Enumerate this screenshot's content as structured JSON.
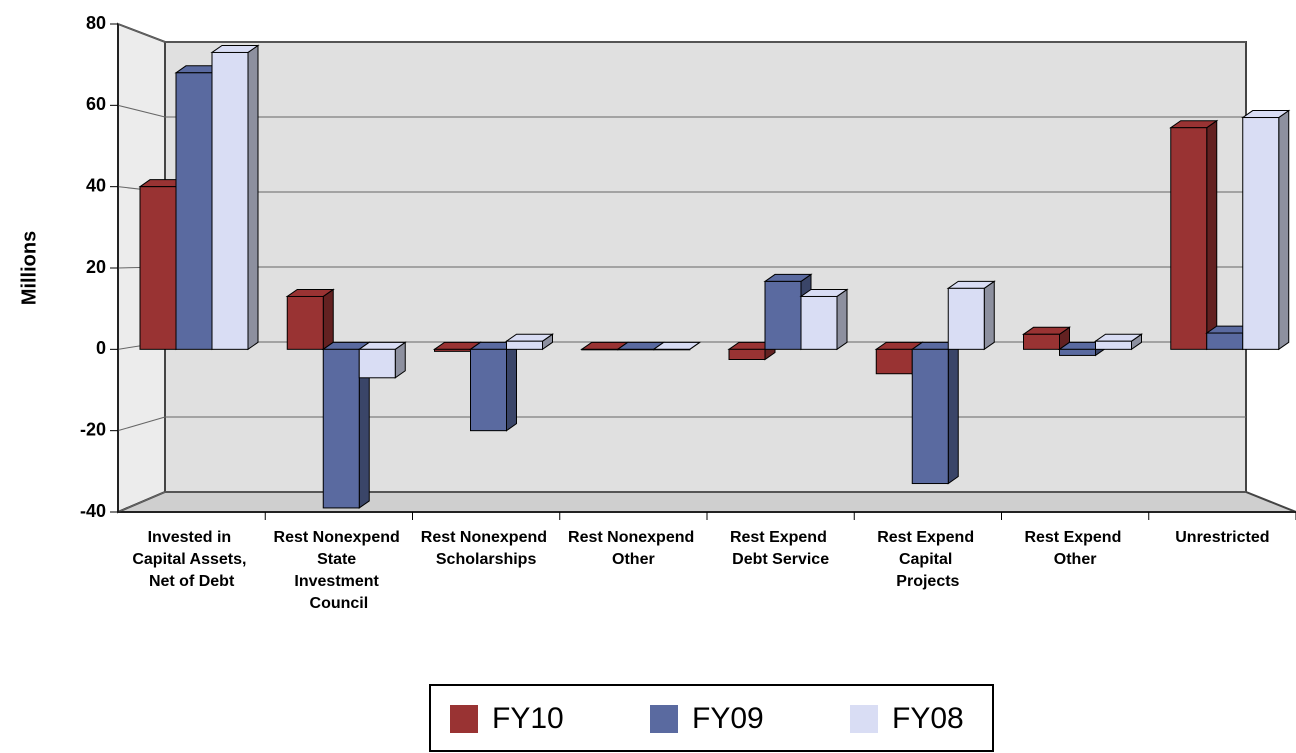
{
  "chart_data": {
    "type": "bar3d",
    "y_label": "Millions",
    "categories": [
      "Invested in Capital Assets, Net of Debt",
      "Rest Nonexpend State Investment Council",
      "Rest Nonexpend Scholarships",
      "Rest Nonexpend Other",
      "Rest Expend Debt Service",
      "Rest Expend Capital Projects",
      "Rest Expend Other",
      "Unrestricted"
    ],
    "series": [
      {
        "name": "FY10",
        "color": "#993333",
        "values": [
          40,
          13,
          -0.5,
          0,
          -2.5,
          -6,
          3.7,
          54.5
        ]
      },
      {
        "name": "FY09",
        "color": "#5a6aa0",
        "values": [
          68,
          -39,
          -20,
          0,
          16.7,
          -33,
          -1.5,
          4
        ]
      },
      {
        "name": "FY08",
        "color": "#d9ddf4",
        "values": [
          73,
          -7,
          2,
          0,
          13,
          15,
          2,
          57
        ]
      }
    ],
    "ylim": [
      -40,
      80
    ],
    "yticks": [
      -40,
      -20,
      0,
      20,
      40,
      60,
      80
    ],
    "grid": true
  }
}
